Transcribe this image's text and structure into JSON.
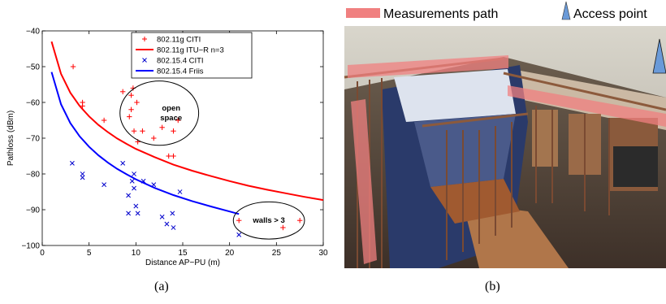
{
  "panel_a_caption": "(a)",
  "panel_b_caption": "(b)",
  "chart_data": {
    "type": "scatter",
    "title": "",
    "xlabel": "Distance AP−PU (m)",
    "ylabel": "Pathloss (dBm)",
    "xlim": [
      0,
      30
    ],
    "ylim": [
      -100,
      -40
    ],
    "xticks": [
      0,
      5,
      10,
      15,
      20,
      25,
      30
    ],
    "yticks": [
      -100,
      -90,
      -80,
      -70,
      -60,
      -50,
      -40
    ],
    "xtick_labels": [
      "0",
      "5",
      "10",
      "15",
      "20",
      "25",
      "30"
    ],
    "ytick_labels": [
      "−100",
      "−90",
      "−80",
      "−70",
      "−60",
      "−50",
      "−40"
    ],
    "grid": false,
    "legend_position": "top-right",
    "colors": {
      "citi_g": "#ff0000",
      "itu": "#ff0000",
      "citi_154": "#0000cc",
      "friis": "#0000ff"
    },
    "series": [
      {
        "name": "802.11g CITI",
        "kind": "scatter",
        "marker": "+",
        "points": [
          [
            3.3,
            -50
          ],
          [
            4.3,
            -60
          ],
          [
            4.3,
            -61
          ],
          [
            6.6,
            -65
          ],
          [
            8.6,
            -57
          ],
          [
            9.3,
            -64
          ],
          [
            9.5,
            -58
          ],
          [
            9.7,
            -56
          ],
          [
            9.5,
            -62
          ],
          [
            9.8,
            -68
          ],
          [
            10.1,
            -60
          ],
          [
            10.2,
            -71
          ],
          [
            10.7,
            -68
          ],
          [
            11.9,
            -70
          ],
          [
            12.8,
            -67
          ],
          [
            13.5,
            -75
          ],
          [
            14.0,
            -75
          ],
          [
            14.0,
            -68
          ],
          [
            14.5,
            -65
          ],
          [
            21.0,
            -93
          ],
          [
            25.7,
            -95
          ],
          [
            27.5,
            -93
          ]
        ]
      },
      {
        "name": "802.11g ITU−R n=3",
        "kind": "line",
        "points": [
          [
            1,
            -43
          ],
          [
            2,
            -52
          ],
          [
            3,
            -57.3
          ],
          [
            4,
            -61
          ],
          [
            5,
            -63.9
          ],
          [
            6,
            -66.3
          ],
          [
            7,
            -68.3
          ],
          [
            8,
            -70.1
          ],
          [
            9,
            -71.6
          ],
          [
            10,
            -73
          ],
          [
            12,
            -75.3
          ],
          [
            14,
            -77.4
          ],
          [
            16,
            -79.1
          ],
          [
            18,
            -80.6
          ],
          [
            20,
            -82
          ],
          [
            22,
            -83.3
          ],
          [
            24,
            -84.4
          ],
          [
            26,
            -85.4
          ],
          [
            28,
            -86.4
          ],
          [
            30,
            -87.3
          ]
        ]
      },
      {
        "name": "802.15.4 CITI",
        "kind": "scatter",
        "marker": "x",
        "points": [
          [
            3.2,
            -77
          ],
          [
            4.3,
            -80
          ],
          [
            4.3,
            -81
          ],
          [
            6.6,
            -83
          ],
          [
            8.6,
            -77
          ],
          [
            9.2,
            -86
          ],
          [
            9.2,
            -91
          ],
          [
            9.6,
            -82
          ],
          [
            9.8,
            -80
          ],
          [
            9.8,
            -84
          ],
          [
            10.0,
            -89
          ],
          [
            10.2,
            -91
          ],
          [
            10.8,
            -82
          ],
          [
            11.9,
            -83
          ],
          [
            12.8,
            -92
          ],
          [
            13.3,
            -94
          ],
          [
            13.9,
            -91
          ],
          [
            14.0,
            -95
          ],
          [
            14.7,
            -85
          ],
          [
            21.0,
            -97
          ]
        ]
      },
      {
        "name": "802.15.4 Friis",
        "kind": "line",
        "points": [
          [
            1,
            -51.5
          ],
          [
            2,
            -60.5
          ],
          [
            3,
            -65.8
          ],
          [
            4,
            -69.5
          ],
          [
            5,
            -72.4
          ],
          [
            6,
            -74.8
          ],
          [
            7,
            -76.8
          ],
          [
            8,
            -78.6
          ],
          [
            9,
            -80.1
          ],
          [
            10,
            -81.5
          ],
          [
            12,
            -83.9
          ],
          [
            14,
            -85.9
          ],
          [
            16,
            -87.6
          ],
          [
            18,
            -89.1
          ],
          [
            20,
            -90.5
          ],
          [
            21,
            -91.2
          ]
        ]
      }
    ],
    "annotations": [
      {
        "text": "open\nspace",
        "x": 12.5,
        "y": -63,
        "rx": 4.2,
        "ry": 9
      },
      {
        "text": "walls > 3",
        "x": 24.2,
        "y": -93,
        "rx": 3.8,
        "ry": 5.2
      }
    ]
  },
  "photo": {
    "legend_path_label": "Measurements path",
    "legend_ap_label": "Access point",
    "path_color": "#f08080",
    "ap_color": "#6a9ad8"
  }
}
